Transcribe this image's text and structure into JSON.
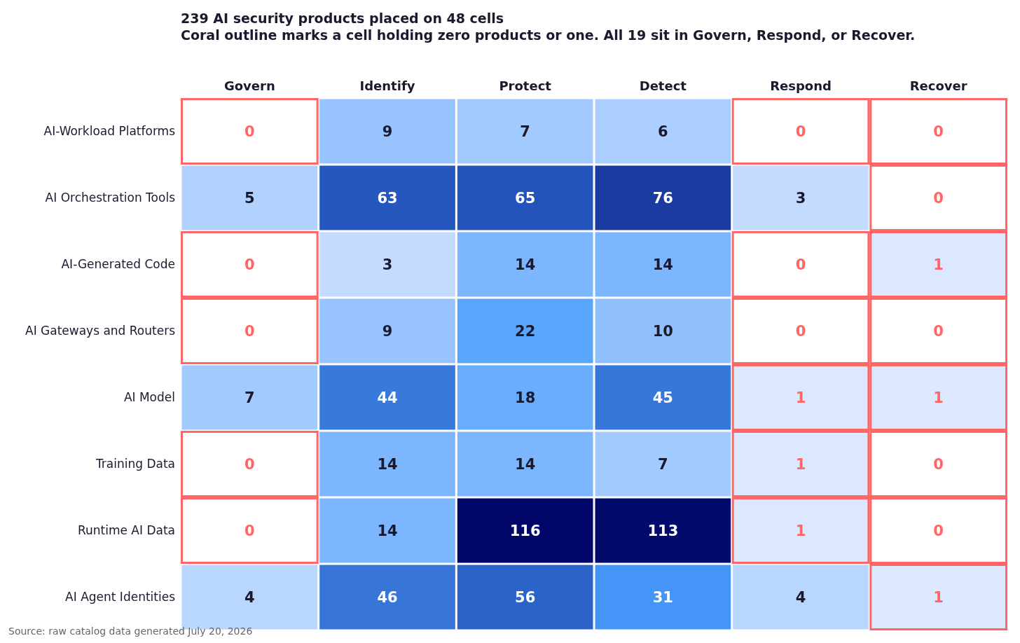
{
  "chart_data": {
    "type": "heatmap",
    "title": "239 AI security products placed on 48 cells",
    "subtitle": "Coral outline marks a cell holding zero products or one. All 19 sit in Govern, Respond, or Recover.",
    "categories": [
      "Govern",
      "Identify",
      "Protect",
      "Detect",
      "Respond",
      "Recover"
    ],
    "y_categories": [
      "AI-Workload Platforms",
      "AI Orchestration Tools",
      "AI-Generated Code",
      "AI Gateways and Routers",
      "AI Model",
      "Training Data",
      "Runtime AI Data",
      "AI Agent Identities"
    ],
    "cells": [
      [
        0,
        9,
        7,
        6,
        0,
        0
      ],
      [
        5,
        63,
        65,
        76,
        3,
        0
      ],
      [
        0,
        3,
        14,
        14,
        0,
        1
      ],
      [
        0,
        9,
        22,
        10,
        0,
        0
      ],
      [
        7,
        44,
        18,
        45,
        1,
        1
      ],
      [
        0,
        14,
        14,
        7,
        1,
        0
      ],
      [
        0,
        14,
        116,
        113,
        1,
        0
      ],
      [
        4,
        46,
        56,
        31,
        4,
        1
      ]
    ],
    "data_labels": true,
    "annotations": [
      "Source: raw catalog data generated July 20, 2026"
    ]
  }
}
